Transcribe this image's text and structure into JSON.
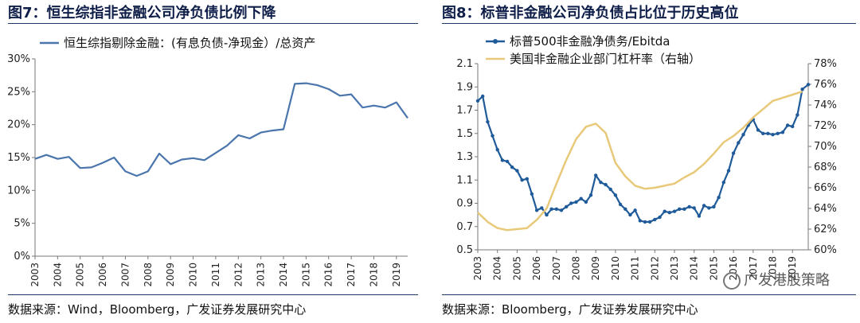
{
  "panels": {
    "left": {
      "title": "图7：恒生综指非金融公司净负债比例下降",
      "source": "数据来源：Wind，Bloomberg，广发证券发展研究中心"
    },
    "right": {
      "title": "图8：标普非金融公司净负债占比位于历史高位",
      "source": "数据来源：Bloomberg，广发证券发展研究中心",
      "watermark": "广发港股策略"
    }
  },
  "colors": {
    "navy_line": "#4a75ad",
    "navy_dark": "#1f5a99",
    "gold": "#e8c97a",
    "rule": "#1f3a68"
  },
  "chart_data": [
    {
      "type": "line",
      "title": "",
      "legend_position": "top-left",
      "grid": false,
      "x_tick_labels": [
        "2003",
        "2004",
        "2005",
        "2006",
        "2007",
        "2008",
        "2009",
        "2010",
        "2011",
        "2012",
        "2013",
        "2014",
        "2015",
        "2016",
        "2017",
        "2018",
        "2019"
      ],
      "y_tick_labels": [
        "0%",
        "5%",
        "10%",
        "15%",
        "20%",
        "25%",
        "30%"
      ],
      "xlim": [
        2003.0,
        2019.5
      ],
      "ylim": [
        0,
        30
      ],
      "series": [
        {
          "name": "恒生综指剔除金融：(有息负债-净现金）/总资产",
          "color": "#4a75ad",
          "x": [
            2003.0,
            2003.5,
            2004.0,
            2004.5,
            2005.0,
            2005.5,
            2006.0,
            2006.5,
            2007.0,
            2007.5,
            2008.0,
            2008.5,
            2009.0,
            2009.5,
            2010.0,
            2010.5,
            2011.0,
            2011.5,
            2012.0,
            2012.5,
            2013.0,
            2013.5,
            2014.0,
            2014.5,
            2015.0,
            2015.5,
            2016.0,
            2016.5,
            2017.0,
            2017.5,
            2018.0,
            2018.5,
            2019.0,
            2019.5
          ],
          "y": [
            14.8,
            15.4,
            14.8,
            15.1,
            13.4,
            13.5,
            14.2,
            15.0,
            12.9,
            12.2,
            12.9,
            15.6,
            14.0,
            14.7,
            14.9,
            14.6,
            15.7,
            16.8,
            18.4,
            17.9,
            18.8,
            19.1,
            19.3,
            26.2,
            26.3,
            26.0,
            25.4,
            24.4,
            24.6,
            22.6,
            22.9,
            22.6,
            23.4,
            21.0
          ]
        }
      ]
    },
    {
      "type": "line",
      "title": "",
      "legend_position": "top-left",
      "grid": false,
      "x_tick_labels": [
        "2003",
        "2004",
        "2005",
        "2006",
        "2007",
        "2008",
        "2009",
        "2010",
        "2011",
        "2012",
        "2013",
        "2014",
        "2015",
        "2016",
        "2017",
        "2018",
        "2019"
      ],
      "y_tick_labels": [
        "0.5",
        "0.7",
        "0.9",
        "1.1",
        "1.3",
        "1.5",
        "1.7",
        "1.9",
        "2.1"
      ],
      "y2_tick_labels": [
        "60%",
        "62%",
        "64%",
        "66%",
        "68%",
        "70%",
        "72%",
        "74%",
        "76%",
        "78%"
      ],
      "xlim": [
        2003.0,
        2019.8
      ],
      "ylim": [
        0.5,
        2.1
      ],
      "y2lim": [
        60,
        78
      ],
      "series": [
        {
          "name": "标普500非金融净债务/Ebitda",
          "axis": "left",
          "color": "#1f5a99",
          "x": [
            2003.0,
            2003.25,
            2003.5,
            2003.75,
            2004.0,
            2004.25,
            2004.5,
            2004.75,
            2005.0,
            2005.25,
            2005.5,
            2005.75,
            2006.0,
            2006.25,
            2006.5,
            2006.75,
            2007.0,
            2007.25,
            2007.5,
            2007.75,
            2008.0,
            2008.25,
            2008.5,
            2008.75,
            2009.0,
            2009.25,
            2009.5,
            2009.75,
            2010.0,
            2010.25,
            2010.5,
            2010.75,
            2011.0,
            2011.25,
            2011.5,
            2011.75,
            2012.0,
            2012.25,
            2012.5,
            2012.75,
            2013.0,
            2013.25,
            2013.5,
            2013.75,
            2014.0,
            2014.25,
            2014.5,
            2014.75,
            2015.0,
            2015.25,
            2015.5,
            2015.75,
            2016.0,
            2016.25,
            2016.5,
            2016.75,
            2017.0,
            2017.25,
            2017.5,
            2017.75,
            2018.0,
            2018.25,
            2018.5,
            2018.75,
            2019.0,
            2019.25,
            2019.5,
            2019.8
          ],
          "y": [
            1.78,
            1.82,
            1.6,
            1.48,
            1.36,
            1.27,
            1.26,
            1.21,
            1.18,
            1.1,
            1.11,
            0.98,
            0.84,
            0.86,
            0.8,
            0.85,
            0.85,
            0.84,
            0.87,
            0.9,
            0.91,
            0.94,
            0.91,
            0.97,
            1.14,
            1.08,
            1.06,
            1.02,
            0.97,
            0.89,
            0.85,
            0.8,
            0.84,
            0.75,
            0.74,
            0.74,
            0.76,
            0.78,
            0.83,
            0.82,
            0.83,
            0.85,
            0.85,
            0.87,
            0.86,
            0.79,
            0.88,
            0.86,
            0.87,
            0.95,
            1.08,
            1.18,
            1.33,
            1.42,
            1.49,
            1.57,
            1.62,
            1.53,
            1.5,
            1.5,
            1.49,
            1.5,
            1.51,
            1.57,
            1.56,
            1.66,
            1.88,
            1.92
          ]
        },
        {
          "name": "美国非金融企业部门杠杆率（右轴）",
          "axis": "right",
          "color": "#e8c97a",
          "x": [
            2003.0,
            2003.5,
            2004.0,
            2004.5,
            2005.0,
            2005.5,
            2006.0,
            2006.5,
            2007.0,
            2007.5,
            2008.0,
            2008.5,
            2009.0,
            2009.5,
            2010.0,
            2010.5,
            2011.0,
            2011.5,
            2012.0,
            2012.5,
            2013.0,
            2013.5,
            2014.0,
            2014.5,
            2015.0,
            2015.5,
            2016.0,
            2016.5,
            2017.0,
            2017.5,
            2018.0,
            2018.5,
            2019.0,
            2019.5
          ],
          "y": [
            63.6,
            62.7,
            62.1,
            61.9,
            62.0,
            62.1,
            62.9,
            64.0,
            66.4,
            68.7,
            70.7,
            71.9,
            72.2,
            71.3,
            68.4,
            67.1,
            66.2,
            65.9,
            66.0,
            66.2,
            66.4,
            67.0,
            67.5,
            68.3,
            69.3,
            70.4,
            71.0,
            71.8,
            72.8,
            73.6,
            74.4,
            74.7,
            75.0,
            75.3
          ]
        }
      ]
    }
  ]
}
